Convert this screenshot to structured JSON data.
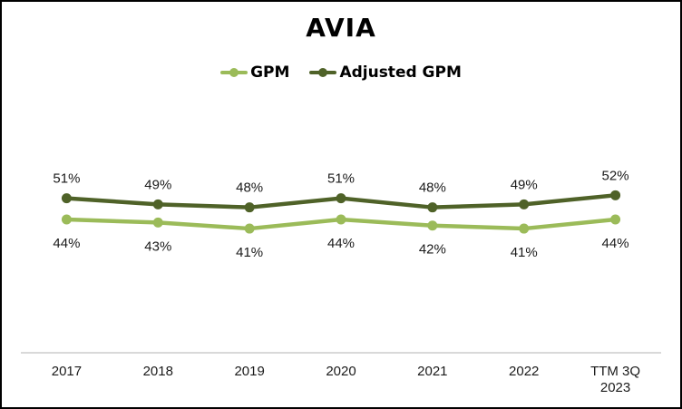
{
  "chart_data": {
    "type": "line",
    "title": "AVIA",
    "xlabel": "",
    "ylabel": "",
    "ylim": [
      0,
      60
    ],
    "grid": false,
    "legend_position": "top-center",
    "categories": [
      "2017",
      "2018",
      "2019",
      "2020",
      "2021",
      "2022",
      "TTM 3Q 2023"
    ],
    "category_lines": [
      [
        "2017"
      ],
      [
        "2018"
      ],
      [
        "2019"
      ],
      [
        "2020"
      ],
      [
        "2021"
      ],
      [
        "2022"
      ],
      [
        "TTM 3Q",
        "2023"
      ]
    ],
    "series": [
      {
        "name": "GPM",
        "color": "#9bbb59",
        "values": [
          44,
          43,
          41,
          44,
          42,
          41,
          44
        ],
        "labels": [
          "44%",
          "43%",
          "41%",
          "44%",
          "42%",
          "41%",
          "44%"
        ],
        "label_position": "below"
      },
      {
        "name": "Adjusted GPM",
        "color": "#4f6228",
        "values": [
          51,
          49,
          48,
          51,
          48,
          49,
          52
        ],
        "labels": [
          "51%",
          "49%",
          "48%",
          "51%",
          "48%",
          "49%",
          "52%"
        ],
        "label_position": "above"
      }
    ]
  },
  "colors": {
    "axis": "#d9d9d9",
    "border": "#000000"
  }
}
